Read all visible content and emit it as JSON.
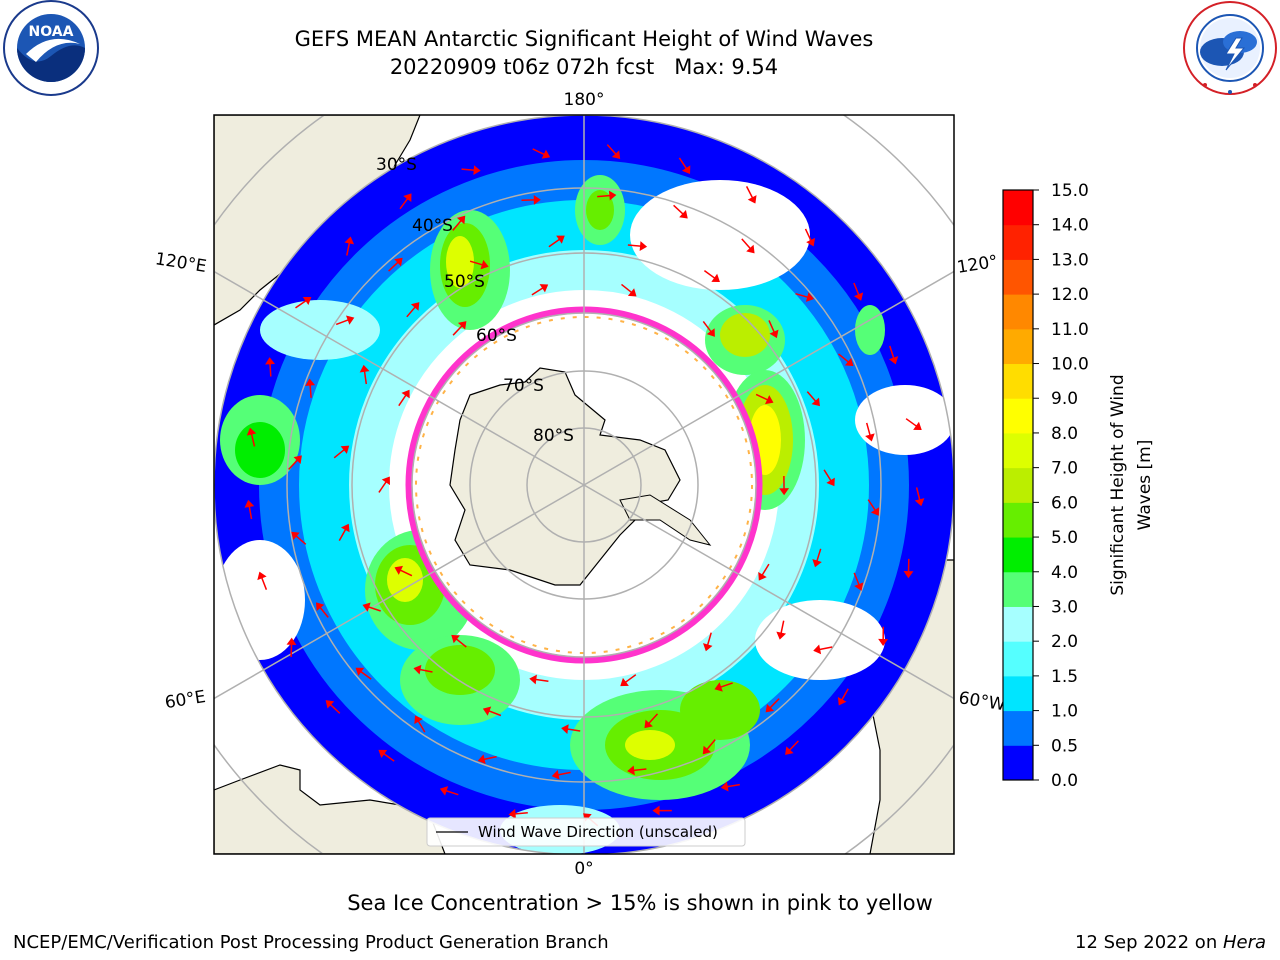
{
  "header": {
    "title_line1": "GEFS MEAN Antarctic Significant Height of Wind Waves",
    "title_line2": "20220909 t06z 072h fcst   Max: 9.54"
  },
  "logos": {
    "left": {
      "name": "noaa-logo",
      "text": "NOAA",
      "ring_text": "NATIONAL OCEANIC AND ATMOSPHERIC ADMINISTRATION · U.S. DEPARTMENT OF COMMERCE"
    },
    "right": {
      "name": "nws-logo",
      "ring_text": "NATIONAL WEATHER SERVICE"
    }
  },
  "map": {
    "projection": "south-polar-stereographic",
    "lon_labels": {
      "top": "180°",
      "bottom": "0°",
      "upper_left": "120°E",
      "lower_left": "60°E",
      "upper_right": "120°",
      "lower_right": "60°W"
    },
    "lat_labels": [
      "30°S",
      "40°S",
      "50°S",
      "60°S",
      "70°S",
      "80°S"
    ],
    "legend_label": "Wind Wave Direction (unscaled)",
    "colors": {
      "land": "#efedde",
      "ocean_bg": "#ffffff",
      "arrow": "#ff0000",
      "sea_ice_edge": "#ff33cc",
      "sea_ice_inner": "#ffb347",
      "grid": "#b0b0b0"
    }
  },
  "colorbar": {
    "label": "Significant Height of Wind Waves [m]",
    "label_line1": "Significant Height of Wind",
    "label_line2": "Waves [m]",
    "ticks": [
      "15.0",
      "14.0",
      "13.0",
      "12.0",
      "11.0",
      "10.0",
      "9.0",
      "8.0",
      "7.0",
      "6.0",
      "5.0",
      "4.0",
      "3.0",
      "2.0",
      "1.5",
      "1.0",
      "0.5",
      "0.0"
    ],
    "colors_bottom_to_top": [
      "#0000ff",
      "#0077ff",
      "#00e5ff",
      "#55ffff",
      "#a6ffff",
      "#55ff77",
      "#00ee00",
      "#66ee00",
      "#bbee00",
      "#ddff00",
      "#ffff00",
      "#ffdd00",
      "#ffaa00",
      "#ff8800",
      "#ff5500",
      "#ff2200",
      "#ff0000"
    ]
  },
  "footer": {
    "sea_ice_note": "Sea Ice Concentration > 15% is shown in pink to yellow",
    "branch": "NCEP/EMC/Verification Post Processing Product Generation Branch",
    "date_prefix": "12 Sep 2022 on ",
    "date_system": "Hera"
  }
}
